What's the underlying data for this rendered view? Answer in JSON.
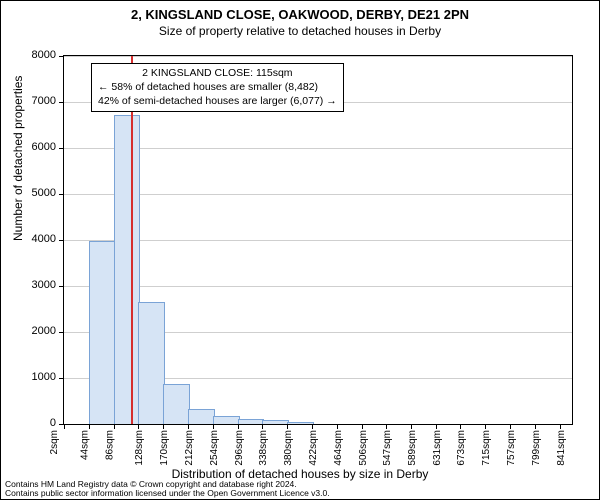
{
  "title": "2, KINGSLAND CLOSE, OAKWOOD, DERBY, DE21 2PN",
  "subtitle": "Size of property relative to detached houses in Derby",
  "title_fontsize": 13,
  "subtitle_fontsize": 12,
  "ylabel": "Number of detached properties",
  "xlabel": "Distribution of detached houses by size in Derby",
  "label_fontsize": 12,
  "background_color": "#ffffff",
  "border_color": "#000000",
  "grid_color": "#cfcfcf",
  "bar_fill_color": "#d6e4f5",
  "bar_border_color": "#7aa3d6",
  "reference_line_color": "#d62f2f",
  "chart": {
    "type": "histogram",
    "ylim": [
      0,
      8000
    ],
    "ytick_step": 1000,
    "yticks": [
      0,
      1000,
      2000,
      3000,
      4000,
      5000,
      6000,
      7000,
      8000
    ],
    "xrange_sqm": [
      2,
      862
    ],
    "xtick_labels": [
      "2sqm",
      "44sqm",
      "86sqm",
      "128sqm",
      "170sqm",
      "212sqm",
      "254sqm",
      "296sqm",
      "338sqm",
      "380sqm",
      "422sqm",
      "464sqm",
      "506sqm",
      "547sqm",
      "589sqm",
      "631sqm",
      "673sqm",
      "715sqm",
      "757sqm",
      "799sqm",
      "841sqm"
    ],
    "xtick_positions_sqm": [
      2,
      44,
      86,
      128,
      170,
      212,
      254,
      296,
      338,
      380,
      422,
      464,
      506,
      547,
      589,
      631,
      673,
      715,
      757,
      799,
      841
    ],
    "bars": [
      {
        "x_start_sqm": 44,
        "x_end_sqm": 86,
        "count": 3950
      },
      {
        "x_start_sqm": 86,
        "x_end_sqm": 128,
        "count": 6700
      },
      {
        "x_start_sqm": 128,
        "x_end_sqm": 170,
        "count": 2620
      },
      {
        "x_start_sqm": 170,
        "x_end_sqm": 212,
        "count": 850
      },
      {
        "x_start_sqm": 212,
        "x_end_sqm": 254,
        "count": 300
      },
      {
        "x_start_sqm": 254,
        "x_end_sqm": 296,
        "count": 160
      },
      {
        "x_start_sqm": 296,
        "x_end_sqm": 338,
        "count": 80
      },
      {
        "x_start_sqm": 338,
        "x_end_sqm": 380,
        "count": 60
      },
      {
        "x_start_sqm": 380,
        "x_end_sqm": 422,
        "count": 30
      },
      {
        "x_start_sqm": 422,
        "x_end_sqm": 464,
        "count": 0
      }
    ],
    "reference_x_sqm": 115
  },
  "annotation": {
    "line1": "2 KINGSLAND CLOSE: 115sqm",
    "line2": "← 58% of detached houses are smaller (8,482)",
    "line3": "42% of semi-detached houses are larger (6,077) →",
    "fontsize": 10.5
  },
  "footer": {
    "line1": "Contains HM Land Registry data © Crown copyright and database right 2024.",
    "line2": "Contains public sector information licensed under the Open Government Licence v3.0.",
    "fontsize": 8.5
  }
}
